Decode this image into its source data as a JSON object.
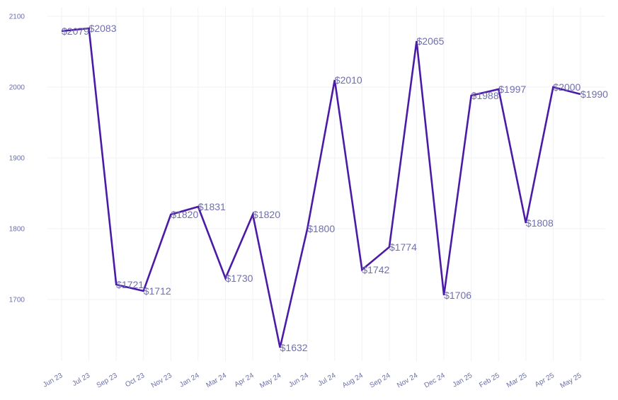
{
  "chart_data": {
    "type": "line",
    "title": "",
    "xlabel": "",
    "ylabel": "",
    "x": [
      "Jun 23",
      "Jul 23",
      "Sep 23",
      "Oct 23",
      "Nov 23",
      "Jan 24",
      "Mar 24",
      "Apr 24",
      "May 24",
      "Jun 24",
      "Jul 24",
      "Aug 24",
      "Sep 24",
      "Nov 24",
      "Dec 24",
      "Jan 25",
      "Feb 25",
      "Mar 25",
      "Apr 25",
      "May 25"
    ],
    "series": [
      {
        "values": [
          2079,
          2083,
          1721,
          1712,
          1820,
          1831,
          1730,
          1820,
          1632,
          1800,
          2010,
          1742,
          1774,
          2065,
          1706,
          1988,
          1997,
          1808,
          2000,
          1990
        ],
        "labels": [
          "$2079",
          "$2083",
          "$1721",
          "$1712",
          "$1820",
          "$1831",
          "$1730",
          "$1820",
          "$1632",
          "$1800",
          "$2010",
          "$1742",
          "$1774",
          "$2065",
          "$1706",
          "$1988",
          "$1997",
          "$1808",
          "$2000",
          "$1990"
        ]
      }
    ],
    "yticks": [
      "1700",
      "1800",
      "1900",
      "2000",
      "2100"
    ],
    "ytick_values": [
      1700,
      1800,
      1900,
      2000,
      2100
    ],
    "ylim": [
      1612,
      2101
    ],
    "grid": true,
    "legend": "none",
    "line_color": "#4b1aa6",
    "label_color": "#6f6faf",
    "tick_color": "#6b6fa8",
    "grid_color": "#f2f2f6"
  }
}
